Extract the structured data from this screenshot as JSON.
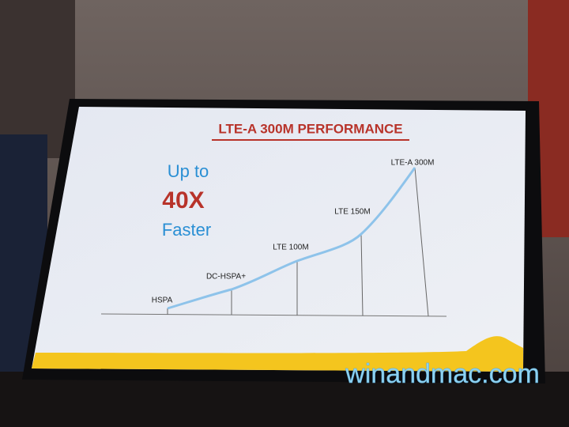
{
  "slide": {
    "title": "LTE-A 300M PERFORMANCE",
    "headline": {
      "line1": "Up to",
      "line2": "40X",
      "line3": "Faster"
    },
    "curve_labels": [
      "HSPA",
      "DC-HSPA+",
      "LTE 100M",
      "LTE 150M",
      "LTE-A 300M"
    ]
  },
  "watermark": "winandmac.com"
}
